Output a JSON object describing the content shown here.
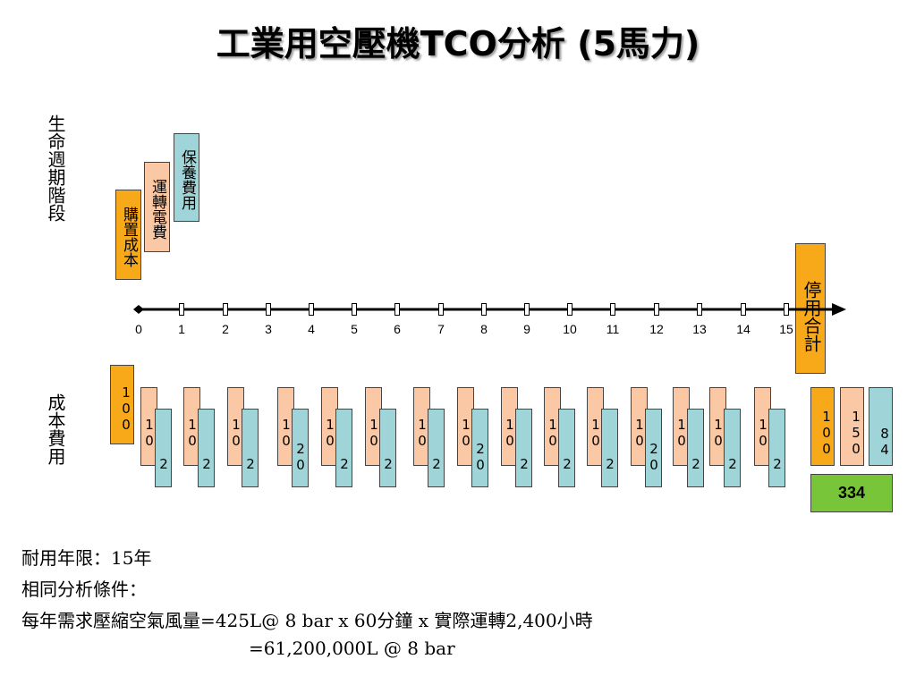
{
  "title": "工業用空壓機TCO分析 (5馬力)",
  "label_lifecycle": "生命週期階段",
  "label_cost": "成本費用",
  "stages": {
    "purchase": "購置成本",
    "operation": "運轉電費",
    "maintenance": "保養費用",
    "end": "停用合計"
  },
  "axis_ticks": [
    "0",
    "1",
    "2",
    "3",
    "4",
    "5",
    "6",
    "7",
    "8",
    "9",
    "10",
    "11",
    "12",
    "13",
    "14",
    "15"
  ],
  "initial_cost": "100",
  "yearly_costs": [
    {
      "electric": "10",
      "maint": "2"
    },
    {
      "electric": "10",
      "maint": "2"
    },
    {
      "electric": "10",
      "maint": "2"
    },
    {
      "electric": "10",
      "maint": "20"
    },
    {
      "electric": "10",
      "maint": "2"
    },
    {
      "electric": "10",
      "maint": "2"
    },
    {
      "electric": "10",
      "maint": "2"
    },
    {
      "electric": "10",
      "maint": "20"
    },
    {
      "electric": "10",
      "maint": "2"
    },
    {
      "electric": "10",
      "maint": "2"
    },
    {
      "electric": "10",
      "maint": "2"
    },
    {
      "electric": "10",
      "maint": "20"
    },
    {
      "electric": "10",
      "maint": "2"
    },
    {
      "electric": "10",
      "maint": "2"
    },
    {
      "electric": "10",
      "maint": "2"
    }
  ],
  "totals": {
    "purchase": "100",
    "electric": "150",
    "maint": "84",
    "sum": "334"
  },
  "notes": {
    "line1": "耐用年限：15年",
    "line2": "相同分析條件：",
    "line3": "每年需求壓縮空氣風量=425L@ 8 bar x 60分鐘 x 實際運轉2,400小時",
    "line4": "=61,200,000L @ 8 bar"
  },
  "colors": {
    "purchase": "#f8a91a",
    "electric": "#fbc8a5",
    "maintenance": "#9fd5d9",
    "total": "#79c53a"
  }
}
